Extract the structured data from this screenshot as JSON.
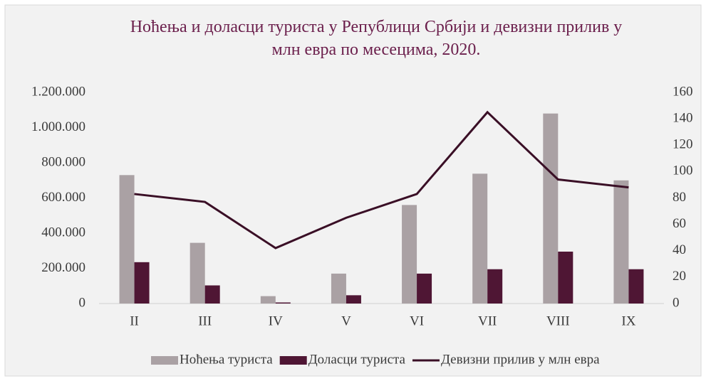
{
  "chart_data": {
    "type": "bar",
    "title": "Ноћења и доласци туриста у Републици Србији и девизни прилив у млн евра по месецима, 2020.",
    "categories": [
      "II",
      "III",
      "IV",
      "V",
      "VI",
      "VII",
      "VIII",
      "IX"
    ],
    "series": [
      {
        "name": "Ноћења туриста",
        "color": "#aaa1a4",
        "type": "bar",
        "values": [
          730000,
          345000,
          42000,
          170000,
          560000,
          738000,
          1080000,
          700000
        ]
      },
      {
        "name": "Доласци туриста",
        "color": "#4f1634",
        "type": "bar",
        "values": [
          235000,
          103000,
          6000,
          47000,
          170000,
          195000,
          295000,
          195000
        ]
      },
      {
        "name": "Девизни прилив у млн евра",
        "color": "#3a0f26",
        "type": "line",
        "axis": "y2",
        "values": [
          83,
          77,
          42,
          65,
          83,
          145,
          94,
          88
        ]
      }
    ],
    "ylim": [
      0,
      1200000
    ],
    "yticks": [
      0,
      {
        "value": 200000,
        "label": "200.000"
      },
      {
        "value": 400000,
        "label": "400.000"
      },
      {
        "value": 600000,
        "label": "600.000"
      },
      {
        "value": 800000,
        "label": "800.000"
      },
      {
        "value": 1000000,
        "label": "1.000.000"
      },
      {
        "value": 1200000,
        "label": "1.200.000"
      }
    ],
    "y2lim": [
      0,
      160
    ],
    "y2ticks": [
      0,
      20,
      40,
      60,
      80,
      100,
      120,
      140,
      160
    ],
    "grid": false,
    "legend": "bottom"
  }
}
